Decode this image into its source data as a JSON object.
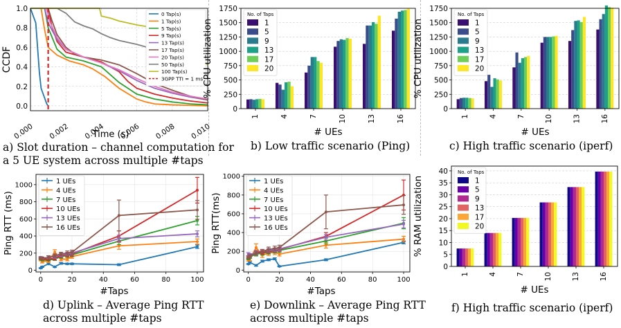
{
  "captions": {
    "a": [
      "a) Slot duration – channel computation for",
      "a 5 UE system across multiple #taps"
    ],
    "b": [
      "b) Low traffic scenario (Ping)"
    ],
    "c": [
      "c) High traffic scenario (iperf)"
    ],
    "d": [
      "d) Uplink – Average Ping RTT",
      "across multiple #taps"
    ],
    "e": [
      "e) Downlink – Average Ping RTT",
      "across multiple #taps"
    ],
    "f": [
      "f) High traffic scenario (iperf)"
    ]
  },
  "chart_data": [
    {
      "id": "a",
      "type": "line",
      "title": "",
      "xlabel": "Time (s)",
      "ylabel": "CCDF",
      "xlim": [
        0,
        0.01
      ],
      "ylim": [
        -0.05,
        1.0
      ],
      "xticks": [
        "0.000",
        "0.002",
        "0.004",
        "0.006",
        "0.008",
        "0.010"
      ],
      "yticks": [
        "0.0",
        "0.2",
        "0.4",
        "0.6",
        "0.8",
        "1.0"
      ],
      "grid": true,
      "legend_position": "top-right",
      "series": [
        {
          "name": "0 Tap(s)",
          "color": "#1f77b4",
          "x": [
            0,
            0.0003,
            0.0004,
            0.0005,
            0.0006,
            0.0007,
            0.0008,
            0.0009,
            0.00095,
            0.001
          ],
          "y": [
            1,
            0.85,
            0.6,
            0.35,
            0.18,
            0.13,
            0.08,
            0.03,
            0.01,
            0
          ]
        },
        {
          "name": "1 Tap(s)",
          "color": "#ff7f0e",
          "x": [
            0,
            0.0006,
            0.0008,
            0.001,
            0.0015,
            0.0022,
            0.003,
            0.0035,
            0.0042,
            0.005,
            0.006,
            0.0065,
            0.007,
            0.008,
            0.009,
            0.01
          ],
          "y": [
            1,
            1,
            0.78,
            0.6,
            0.52,
            0.46,
            0.42,
            0.38,
            0.3,
            0.18,
            0.07,
            0.04,
            0.02,
            0.01,
            0.005,
            0
          ]
        },
        {
          "name": "5 Tap(s)",
          "color": "#2ca02c",
          "x": [
            0,
            0.0008,
            0.001,
            0.0015,
            0.002,
            0.003,
            0.004,
            0.0045,
            0.005,
            0.006,
            0.007,
            0.008,
            0.009,
            0.01
          ],
          "y": [
            1,
            1,
            0.8,
            0.58,
            0.5,
            0.46,
            0.4,
            0.32,
            0.24,
            0.12,
            0.07,
            0.04,
            0.02,
            0.01
          ]
        },
        {
          "name": "9 Tap(s)",
          "color": "#d62728",
          "x": [
            0,
            0.001,
            0.0012,
            0.0015,
            0.002,
            0.003,
            0.004,
            0.005,
            0.0055,
            0.006,
            0.007,
            0.008,
            0.009,
            0.01
          ],
          "y": [
            1,
            1,
            0.82,
            0.66,
            0.55,
            0.5,
            0.45,
            0.35,
            0.25,
            0.18,
            0.12,
            0.08,
            0.05,
            0.03
          ]
        },
        {
          "name": "13 Tap(s)",
          "color": "#9467bd",
          "x": [
            0,
            0.0008,
            0.001,
            0.0015,
            0.002,
            0.003,
            0.004,
            0.005,
            0.006,
            0.007,
            0.008,
            0.009,
            0.01
          ],
          "y": [
            1,
            1,
            0.85,
            0.68,
            0.58,
            0.5,
            0.44,
            0.36,
            0.26,
            0.18,
            0.13,
            0.09,
            0.06
          ]
        },
        {
          "name": "17 Tap(s)",
          "color": "#8c564b",
          "x": [
            0,
            0.001,
            0.0012,
            0.0015,
            0.002,
            0.0025,
            0.003,
            0.004,
            0.005,
            0.006,
            0.007,
            0.008,
            0.009,
            0.01
          ],
          "y": [
            1,
            1,
            0.88,
            0.73,
            0.6,
            0.53,
            0.5,
            0.47,
            0.42,
            0.33,
            0.23,
            0.16,
            0.1,
            0.06
          ]
        },
        {
          "name": "20 Tap(s)",
          "color": "#e377c2",
          "x": [
            0,
            0.0009,
            0.0011,
            0.0015,
            0.002,
            0.003,
            0.004,
            0.005,
            0.006,
            0.007,
            0.008,
            0.009,
            0.01
          ],
          "y": [
            1,
            1,
            0.86,
            0.7,
            0.58,
            0.5,
            0.44,
            0.37,
            0.28,
            0.2,
            0.14,
            0.1,
            0.07
          ]
        },
        {
          "name": "50 Tap(s)",
          "color": "#7f7f7f",
          "x": [
            0,
            0.0015,
            0.002,
            0.0025,
            0.003,
            0.0035,
            0.004,
            0.0045,
            0.005,
            0.006,
            0.007,
            0.008,
            0.009,
            0.0095,
            0.01
          ],
          "y": [
            1,
            1,
            0.95,
            0.86,
            0.82,
            0.79,
            0.74,
            0.7,
            0.67,
            0.63,
            0.58,
            0.5,
            0.4,
            0.3,
            0.2
          ]
        },
        {
          "name": "100 Tap(s)",
          "color": "#bcbd22",
          "x": [
            0,
            0.0039,
            0.004,
            0.0045,
            0.005,
            0.006,
            0.007,
            0.008,
            0.009,
            0.01
          ],
          "y": [
            1,
            1,
            0.92,
            0.9,
            0.87,
            0.83,
            0.8,
            0.72,
            0.6,
            0.42
          ]
        }
      ],
      "vline": {
        "name": "3GPP TTI = 1 ms",
        "x": 0.001,
        "color": "#d62728"
      }
    },
    {
      "id": "b",
      "type": "bar",
      "xlabel": "# UEs",
      "ylabel": "% CPU utilization",
      "ylim": [
        0,
        1750
      ],
      "yticks": [
        0,
        250,
        500,
        750,
        1000,
        1250,
        1500,
        1750
      ],
      "categories": [
        "1",
        "4",
        "7",
        "10",
        "13",
        "16"
      ],
      "legend_title": "No. of Taps",
      "legend_position": "top-left",
      "series": [
        {
          "name": "1",
          "color": "#3b0f70",
          "values": [
            160,
            450,
            630,
            1080,
            1130,
            1360
          ]
        },
        {
          "name": "5",
          "color": "#3a4c8a",
          "values": [
            165,
            420,
            750,
            1180,
            1450,
            1570
          ]
        },
        {
          "name": "9",
          "color": "#2a7b8e",
          "values": [
            155,
            330,
            900,
            1210,
            1450,
            1690
          ]
        },
        {
          "name": "13",
          "color": "#1fa187",
          "values": [
            165,
            460,
            900,
            1200,
            1510,
            1710
          ]
        },
        {
          "name": "17",
          "color": "#6ece58",
          "values": [
            170,
            470,
            830,
            1230,
            1480,
            1720
          ]
        },
        {
          "name": "20",
          "color": "#fde725",
          "values": [
            165,
            390,
            800,
            1220,
            1620,
            1740
          ]
        }
      ]
    },
    {
      "id": "c",
      "type": "bar",
      "xlabel": "# UEs",
      "ylabel": "% CPU utilization",
      "ylim": [
        0,
        1750
      ],
      "yticks": [
        0,
        250,
        500,
        750,
        1000,
        1250,
        1500,
        1750
      ],
      "categories": [
        "1",
        "4",
        "7",
        "10",
        "13",
        "16"
      ],
      "legend_title": "No. of Taps",
      "legend_position": "top-left",
      "series": [
        {
          "name": "1",
          "color": "#3b0f70",
          "values": [
            165,
            480,
            720,
            1150,
            1180,
            1380
          ]
        },
        {
          "name": "5",
          "color": "#3a4c8a",
          "values": [
            185,
            590,
            980,
            1250,
            1370,
            1560
          ]
        },
        {
          "name": "9",
          "color": "#2a7b8e",
          "values": [
            190,
            380,
            800,
            1250,
            1530,
            1650
          ]
        },
        {
          "name": "13",
          "color": "#1fa187",
          "values": [
            190,
            530,
            880,
            1250,
            1540,
            1800
          ]
        },
        {
          "name": "17",
          "color": "#6ece58",
          "values": [
            185,
            510,
            900,
            1260,
            1510,
            1770
          ]
        },
        {
          "name": "20",
          "color": "#fde725",
          "values": [
            180,
            490,
            920,
            1270,
            1600,
            1760
          ]
        }
      ]
    },
    {
      "id": "d",
      "type": "line",
      "xlabel": "#Taps",
      "ylabel": "Ping RTT (ms)",
      "xlim": [
        -3,
        104
      ],
      "ylim": [
        -20,
        1120
      ],
      "xticks": [
        0,
        20,
        40,
        60,
        80,
        100
      ],
      "yticks": [
        0,
        200,
        400,
        600,
        800,
        1000
      ],
      "x": [
        0,
        1,
        5,
        9,
        13,
        17,
        20,
        50,
        100
      ],
      "legend_position": "top-left",
      "series": [
        {
          "name": "1 UEs",
          "color": "#1f77b4",
          "values": [
            25,
            40,
            75,
            40,
            80,
            75,
            75,
            65,
            275
          ],
          "err": [
            5,
            5,
            10,
            8,
            10,
            8,
            8,
            10,
            20
          ]
        },
        {
          "name": "4 UEs",
          "color": "#ff7f0e",
          "values": [
            120,
            100,
            110,
            210,
            130,
            130,
            160,
            285,
            335
          ],
          "err": [
            10,
            15,
            20,
            30,
            20,
            20,
            20,
            40,
            30
          ]
        },
        {
          "name": "7 UEs",
          "color": "#2ca02c",
          "values": [
            130,
            120,
            120,
            130,
            160,
            170,
            180,
            340,
            580
          ],
          "err": [
            10,
            10,
            15,
            15,
            20,
            20,
            20,
            40,
            50
          ]
        },
        {
          "name": "10 UEs",
          "color": "#d62728",
          "values": [
            140,
            130,
            130,
            140,
            170,
            180,
            190,
            400,
            935
          ],
          "err": [
            10,
            10,
            15,
            20,
            20,
            20,
            25,
            60,
            150
          ]
        },
        {
          "name": "13 UEs",
          "color": "#9467bd",
          "values": [
            150,
            140,
            150,
            160,
            180,
            190,
            200,
            370,
            425
          ],
          "err": [
            10,
            10,
            15,
            20,
            20,
            20,
            20,
            40,
            35
          ]
        },
        {
          "name": "16 UEs",
          "color": "#8c564b",
          "values": [
            145,
            140,
            150,
            170,
            190,
            200,
            210,
            640,
            705
          ],
          "err": [
            10,
            15,
            20,
            20,
            20,
            25,
            25,
            180,
            110
          ]
        }
      ]
    },
    {
      "id": "e",
      "type": "line",
      "xlabel": "#Taps",
      "ylabel": "Ping RTT(ms)",
      "xlim": [
        -3,
        104
      ],
      "ylim": [
        -20,
        1020
      ],
      "xticks": [
        0,
        20,
        40,
        60,
        80,
        100
      ],
      "yticks": [
        0,
        200,
        400,
        600,
        800,
        1000
      ],
      "x": [
        0,
        1,
        5,
        9,
        13,
        17,
        20,
        50,
        100
      ],
      "legend_position": "top-left",
      "series": [
        {
          "name": "1 UEs",
          "color": "#1f77b4",
          "values": [
            65,
            80,
            50,
            95,
            110,
            120,
            40,
            110,
            295
          ],
          "err": [
            5,
            8,
            8,
            10,
            10,
            10,
            5,
            10,
            15
          ]
        },
        {
          "name": "4 UEs",
          "color": "#ff7f0e",
          "values": [
            110,
            120,
            240,
            160,
            180,
            190,
            170,
            265,
            330
          ],
          "err": [
            15,
            20,
            40,
            25,
            25,
            25,
            20,
            30,
            30
          ]
        },
        {
          "name": "7 UEs",
          "color": "#2ca02c",
          "values": [
            120,
            140,
            170,
            180,
            190,
            200,
            210,
            310,
            500
          ],
          "err": [
            10,
            15,
            20,
            20,
            20,
            20,
            20,
            30,
            60
          ]
        },
        {
          "name": "10 UEs",
          "color": "#d62728",
          "values": [
            130,
            150,
            180,
            190,
            200,
            210,
            220,
            360,
            800
          ],
          "err": [
            10,
            15,
            20,
            20,
            20,
            20,
            20,
            40,
            160
          ]
        },
        {
          "name": "13 UEs",
          "color": "#9467bd",
          "values": [
            170,
            160,
            190,
            200,
            210,
            215,
            225,
            350,
            490
          ],
          "err": [
            15,
            15,
            20,
            20,
            20,
            20,
            20,
            30,
            40
          ]
        },
        {
          "name": "16 UEs",
          "color": "#8c564b",
          "values": [
            135,
            150,
            180,
            200,
            220,
            230,
            240,
            620,
            695
          ],
          "err": [
            15,
            15,
            20,
            20,
            25,
            25,
            25,
            180,
            100
          ]
        }
      ]
    },
    {
      "id": "f",
      "type": "bar",
      "xlabel": "# UEs",
      "ylabel": "% RAM utilization",
      "ylim": [
        0,
        42
      ],
      "yticks": [
        0,
        5,
        10,
        15,
        20,
        25,
        30,
        35,
        40
      ],
      "categories": [
        "1",
        "4",
        "7",
        "10",
        "13",
        "16"
      ],
      "legend_title": "No. of Taps",
      "legend_position": "top-left",
      "series": [
        {
          "name": "1",
          "color": "#0d0887",
          "values": [
            7.5,
            14,
            20.3,
            26.8,
            33.2,
            39.7
          ]
        },
        {
          "name": "5",
          "color": "#6a00a8",
          "values": [
            7.5,
            14,
            20.3,
            26.8,
            33.2,
            39.7
          ]
        },
        {
          "name": "9",
          "color": "#b12a90",
          "values": [
            7.5,
            14,
            20.3,
            26.8,
            33.2,
            39.7
          ]
        },
        {
          "name": "13",
          "color": "#e16462",
          "values": [
            7.5,
            14,
            20.3,
            26.8,
            33.2,
            39.7
          ]
        },
        {
          "name": "17",
          "color": "#fca636",
          "values": [
            7.5,
            14,
            20.3,
            26.8,
            33.2,
            39.7
          ]
        },
        {
          "name": "20",
          "color": "#f0f921",
          "values": [
            7.5,
            14,
            20.3,
            26.8,
            33.2,
            39.7
          ]
        }
      ]
    }
  ]
}
